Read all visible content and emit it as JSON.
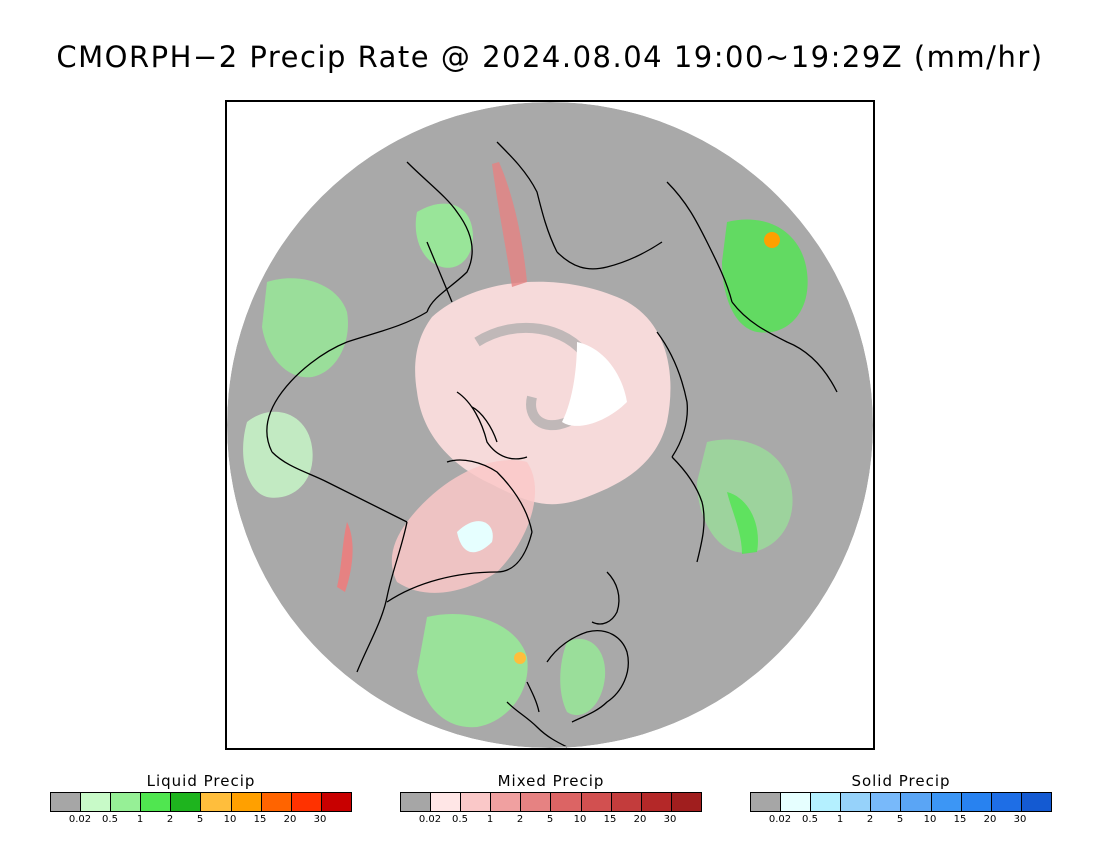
{
  "title": "CMORPH−2 Precip Rate @ 2024.08.04 19:00~19:29Z (mm/hr)",
  "map": {
    "projection": "north-polar-stereographic",
    "background_color": "#a9a9a9",
    "coastline_color": "#000000"
  },
  "legends": {
    "liquid": {
      "title": "Liquid Precip",
      "colors": [
        "#a6a6a6",
        "#c8fac8",
        "#96f096",
        "#50e650",
        "#1eb41e",
        "#ffbe3c",
        "#ffa000",
        "#ff6400",
        "#ff3200",
        "#c80000"
      ],
      "ticks": [
        "0.02",
        "0.5",
        "1",
        "2",
        "5",
        "10",
        "15",
        "20",
        "30"
      ]
    },
    "mixed": {
      "title": "Mixed Precip",
      "colors": [
        "#a6a6a6",
        "#ffe6e6",
        "#fac8c8",
        "#f0a0a0",
        "#e68282",
        "#dc6464",
        "#d25050",
        "#c33c3c",
        "#b42828",
        "#a01e1e"
      ],
      "ticks": [
        "0.02",
        "0.5",
        "1",
        "2",
        "5",
        "10",
        "15",
        "20",
        "30"
      ]
    },
    "solid": {
      "title": "Solid Precip",
      "colors": [
        "#a6a6a6",
        "#e6ffff",
        "#b4f0ff",
        "#96d2fa",
        "#78b9fa",
        "#5aa5f5",
        "#3c96f5",
        "#2882f0",
        "#1e6ee6",
        "#145ad2"
      ],
      "ticks": [
        "0.02",
        "0.5",
        "1",
        "2",
        "5",
        "10",
        "15",
        "20",
        "30"
      ]
    }
  }
}
